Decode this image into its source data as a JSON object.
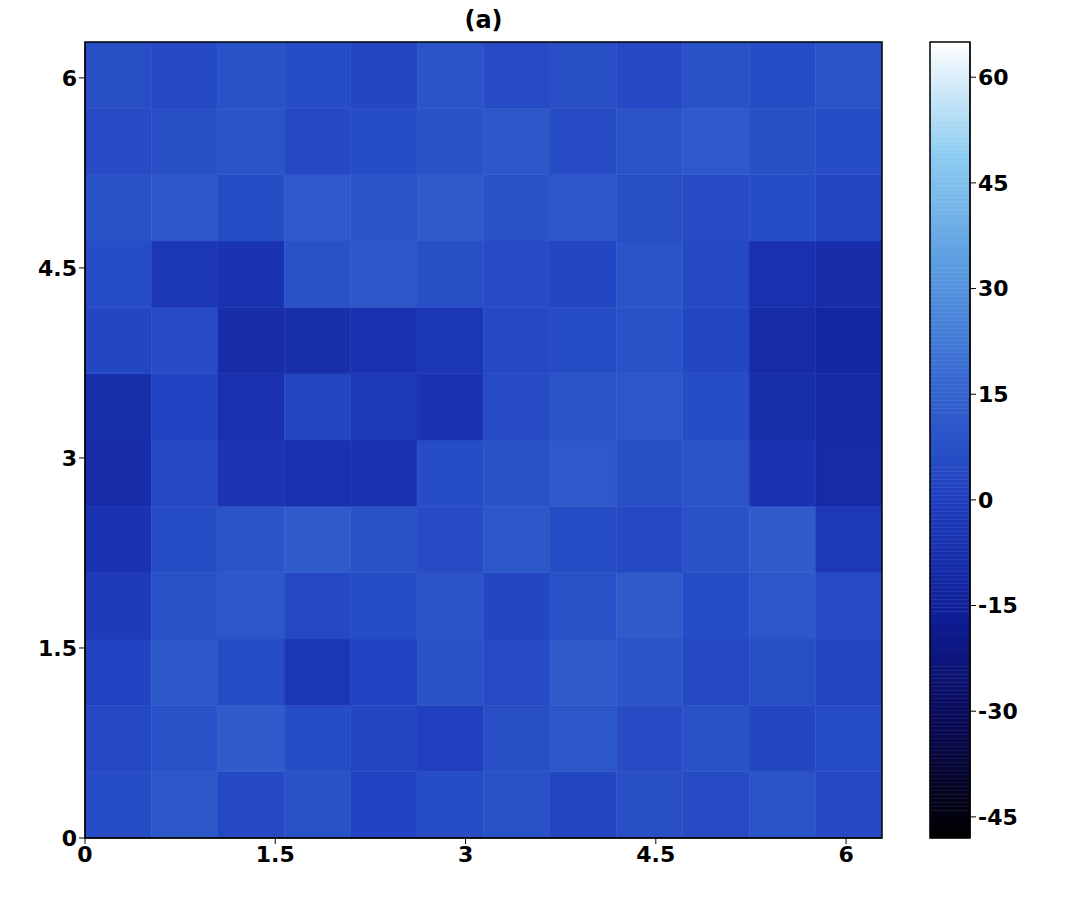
{
  "chart_data": {
    "type": "heatmap",
    "title": "(a)",
    "x_edges": [
      0,
      0.5236,
      1.0472,
      1.5708,
      2.0944,
      2.618,
      3.1416,
      3.6652,
      4.1888,
      4.7124,
      5.236,
      5.7596,
      6.2832
    ],
    "y_edges": [
      0,
      0.5236,
      1.0472,
      1.5708,
      2.0944,
      2.618,
      3.1416,
      3.6652,
      4.1888,
      4.7124,
      5.236,
      5.7596,
      6.2832
    ],
    "cells": [
      [
        6,
        10,
        4,
        8,
        2,
        6,
        8,
        3,
        7,
        5,
        9,
        4
      ],
      [
        4,
        8,
        12,
        6,
        3,
        0,
        7,
        10,
        5,
        8,
        3,
        6
      ],
      [
        2,
        10,
        6,
        -4,
        2,
        8,
        5,
        12,
        9,
        4,
        7,
        3
      ],
      [
        -2,
        8,
        10,
        4,
        6,
        9,
        3,
        8,
        12,
        6,
        10,
        5
      ],
      [
        -6,
        6,
        9,
        12,
        8,
        5,
        10,
        6,
        4,
        8,
        12,
        -3
      ],
      [
        -9,
        4,
        -5,
        -7,
        -6,
        6,
        8,
        11,
        7,
        9,
        -6,
        -10
      ],
      [
        -8,
        2,
        -7,
        3,
        -3,
        -6,
        5,
        9,
        10,
        6,
        -8,
        -11
      ],
      [
        3,
        5,
        -9,
        -8,
        -7,
        -4,
        4,
        6,
        8,
        3,
        -10,
        -12
      ],
      [
        6,
        -4,
        -6,
        8,
        10,
        7,
        5,
        3,
        9,
        4,
        -7,
        -9
      ],
      [
        8,
        10,
        6,
        11,
        9,
        12,
        8,
        10,
        7,
        5,
        6,
        3
      ],
      [
        5,
        7,
        9,
        4,
        6,
        8,
        10,
        5,
        9,
        11,
        7,
        6
      ],
      [
        7,
        4,
        8,
        6,
        3,
        9,
        5,
        7,
        4,
        8,
        6,
        9
      ]
    ],
    "xlim": [
      0,
      6.2832
    ],
    "ylim": [
      0,
      6.2832
    ],
    "xticks": [
      0,
      1.5,
      3,
      4.5,
      6
    ],
    "yticks": [
      0,
      1.5,
      3,
      4.5,
      6
    ],
    "colorbar": {
      "lim": [
        -48,
        65
      ],
      "ticks": [
        -45,
        -30,
        -15,
        0,
        15,
        30,
        45,
        60
      ]
    }
  }
}
